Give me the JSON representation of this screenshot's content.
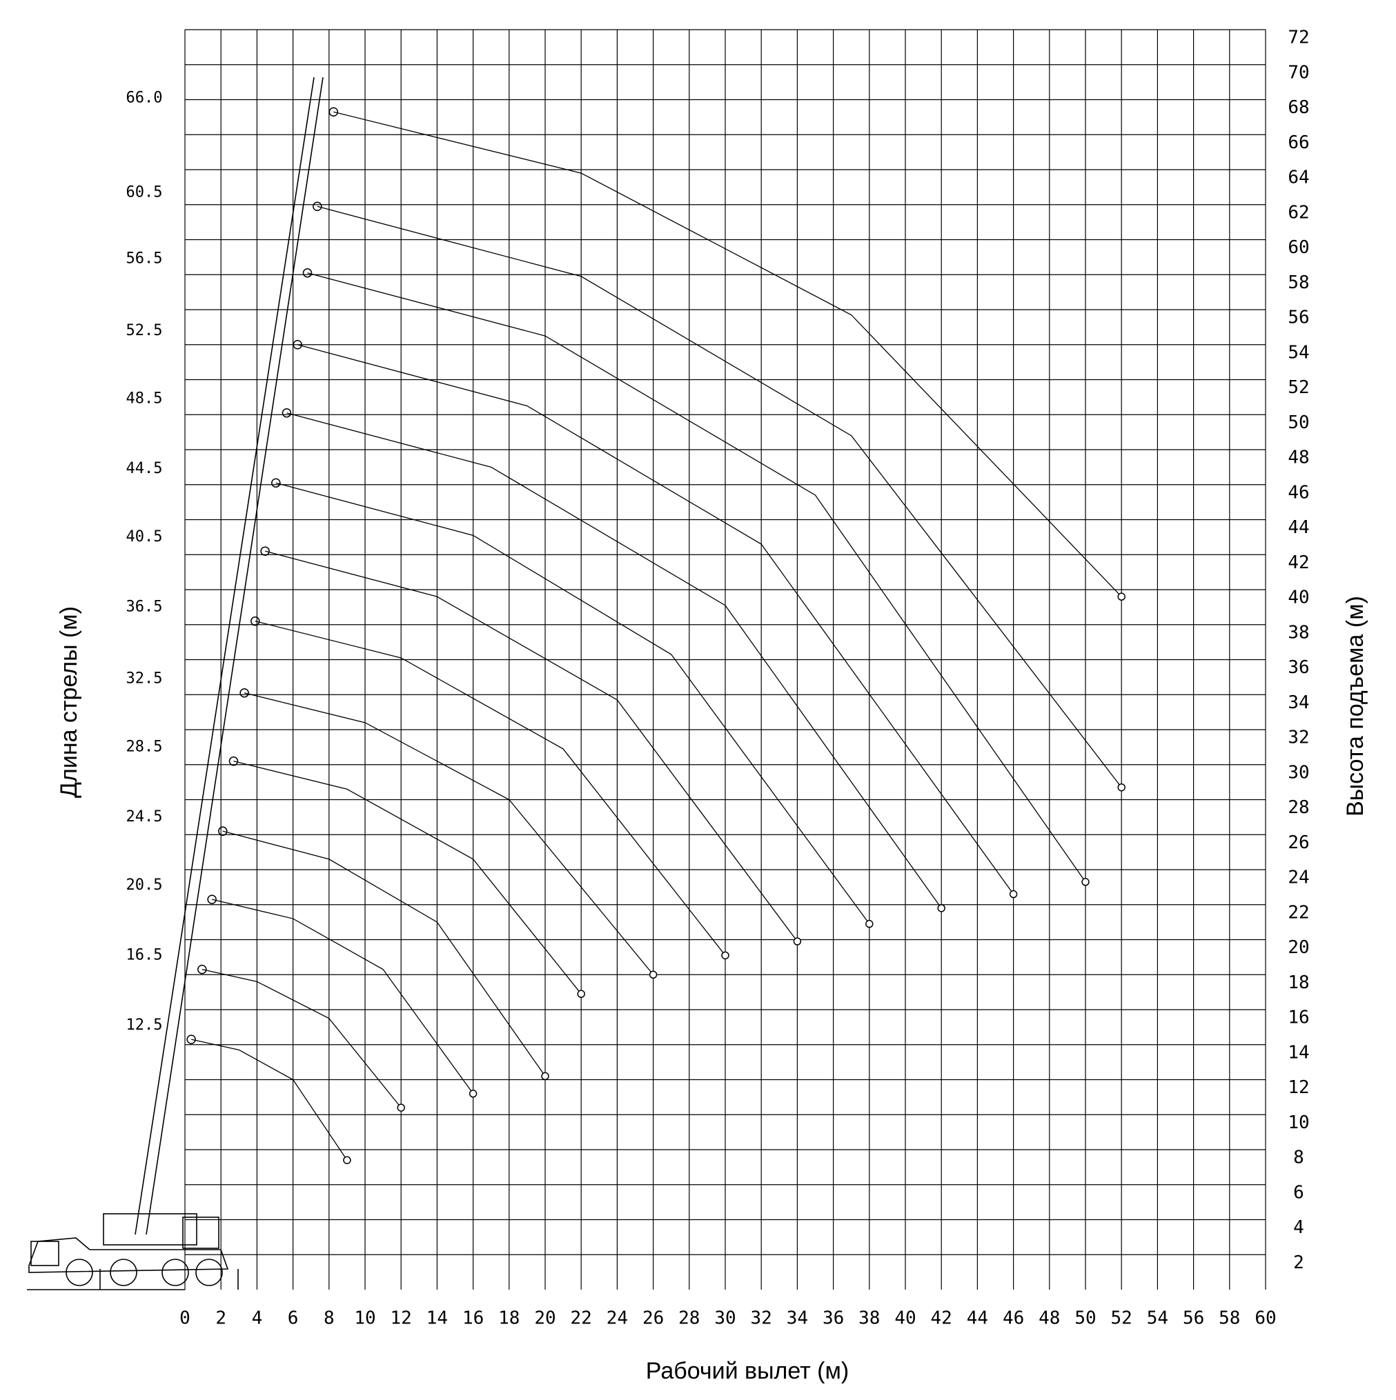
{
  "chart_data": {
    "type": "line",
    "x_label": "Рабочий вылет (м)",
    "y_label": "Длина стрелы (м)",
    "y2_label": "Высота подъема (м)",
    "color": "#000000",
    "grid": true,
    "xlim": [
      0,
      60
    ],
    "xticks": [
      0,
      2,
      4,
      6,
      8,
      10,
      12,
      14,
      16,
      18,
      20,
      22,
      24,
      26,
      28,
      30,
      32,
      34,
      36,
      38,
      40,
      42,
      44,
      46,
      48,
      50,
      52,
      54,
      56,
      58,
      60
    ],
    "ylim": [
      0,
      72
    ],
    "yticks": [
      2,
      4,
      6,
      8,
      10,
      12,
      14,
      16,
      18,
      20,
      22,
      24,
      26,
      28,
      30,
      32,
      34,
      36,
      38,
      40,
      42,
      44,
      46,
      48,
      50,
      52,
      54,
      56,
      58,
      60,
      62,
      64,
      66,
      68,
      70,
      72
    ],
    "series": [
      {
        "name": "12.5",
        "x": [
          0.35,
          3,
          6,
          9
        ],
        "values": [
          14.3,
          13.7,
          12.0,
          7.4
        ]
      },
      {
        "name": "16.5",
        "x": [
          0.95,
          4,
          8,
          12
        ],
        "values": [
          18.3,
          17.6,
          15.5,
          10.4
        ]
      },
      {
        "name": "20.5",
        "x": [
          1.5,
          6,
          11,
          16
        ],
        "values": [
          22.3,
          21.2,
          18.3,
          11.2
        ]
      },
      {
        "name": "24.5",
        "x": [
          2.1,
          8,
          14,
          20
        ],
        "values": [
          26.2,
          24.6,
          21.0,
          12.2
        ]
      },
      {
        "name": "28.5",
        "x": [
          2.7,
          9,
          16,
          22
        ],
        "values": [
          30.2,
          28.6,
          24.6,
          16.9
        ]
      },
      {
        "name": "32.5",
        "x": [
          3.3,
          10,
          18,
          26
        ],
        "values": [
          34.1,
          32.4,
          28.0,
          18.0
        ]
      },
      {
        "name": "36.5",
        "x": [
          3.9,
          12,
          21,
          30
        ],
        "values": [
          38.2,
          36.1,
          30.9,
          19.1
        ]
      },
      {
        "name": "40.5",
        "x": [
          4.45,
          14,
          24,
          34
        ],
        "values": [
          42.2,
          39.6,
          33.7,
          19.9
        ]
      },
      {
        "name": "44.5",
        "x": [
          5.05,
          16,
          27,
          38
        ],
        "values": [
          46.1,
          43.1,
          36.3,
          20.9
        ]
      },
      {
        "name": "48.5",
        "x": [
          5.65,
          17,
          30,
          42
        ],
        "values": [
          50.1,
          47.0,
          39.1,
          21.8
        ]
      },
      {
        "name": "52.5",
        "x": [
          6.25,
          19,
          32,
          46
        ],
        "values": [
          54.0,
          50.5,
          42.6,
          22.6
        ]
      },
      {
        "name": "56.5",
        "x": [
          6.8,
          20,
          35,
          50
        ],
        "values": [
          58.1,
          54.5,
          45.4,
          23.3
        ]
      },
      {
        "name": "60.5",
        "x": [
          7.35,
          22,
          37,
          52
        ],
        "values": [
          61.9,
          57.9,
          48.8,
          28.7
        ]
      },
      {
        "name": "66.0",
        "x": [
          8.25,
          22,
          37,
          52
        ],
        "values": [
          67.3,
          63.8,
          55.7,
          39.6
        ]
      }
    ]
  }
}
